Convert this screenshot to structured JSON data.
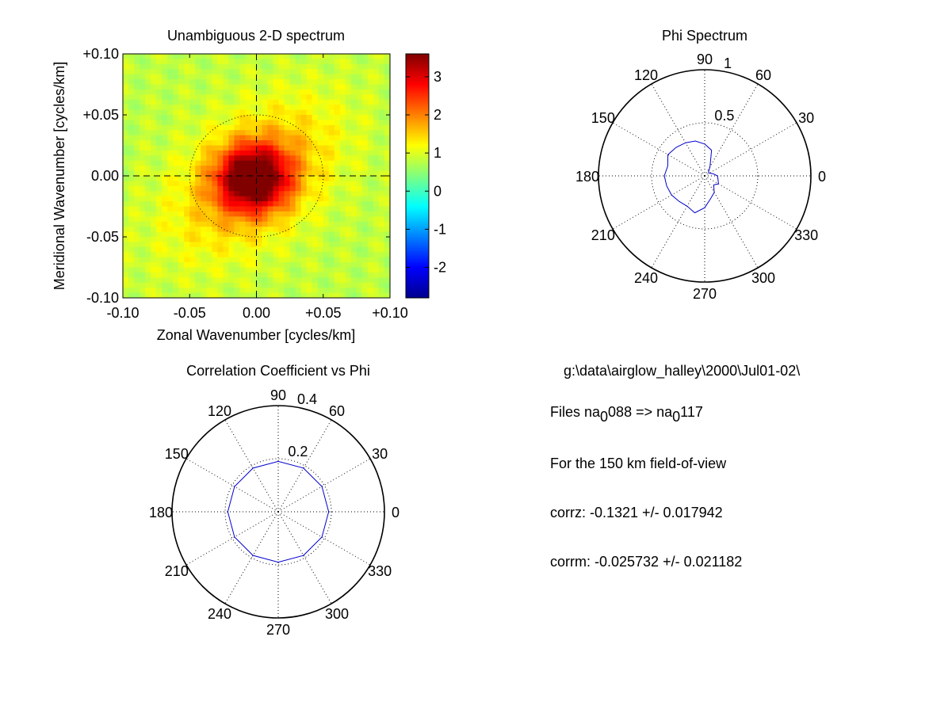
{
  "chart_data": [
    {
      "type": "heatmap",
      "title": "Unambiguous 2-D spectrum",
      "xlabel": "Zonal Wavenumber [cycles/km]",
      "ylabel": "Meridional Wavenumber [cycles/km]",
      "xlim": [
        -0.1,
        0.1
      ],
      "ylim": [
        -0.1,
        0.1
      ],
      "xticks": [
        "-0.10",
        "-0.05",
        "0.00",
        "+0.05",
        "+0.10"
      ],
      "yticks": [
        "+0.10",
        "+0.05",
        "0.00",
        "-0.05",
        "-0.10"
      ],
      "crosshair_at": [
        0,
        0
      ],
      "reference_circle_radius": 0.05,
      "colormap": "jet",
      "clim": [
        -2.8,
        3.6
      ],
      "colorbar_ticks": [
        "3",
        "2",
        "1",
        "0",
        "-1",
        "-2"
      ],
      "peak": {
        "x": -0.002,
        "y": -0.002,
        "value": 3.5
      },
      "background_level": 0.8
    },
    {
      "type": "polar-line",
      "title": "Phi Spectrum",
      "rlim": [
        0,
        1
      ],
      "r_ticks": [
        "0.5",
        "1"
      ],
      "angle_labels": [
        "0",
        "30",
        "60",
        "90",
        "120",
        "150",
        "180",
        "210",
        "240",
        "270",
        "300",
        "330"
      ],
      "series": [
        {
          "color": "#0000cc",
          "theta_deg": [
            0,
            15,
            30,
            45,
            60,
            75,
            90,
            105,
            120,
            135,
            150,
            165,
            180,
            195,
            210,
            225,
            240,
            255,
            270,
            285,
            300,
            315,
            330,
            345
          ],
          "r": [
            0.12,
            0.08,
            0.05,
            0.05,
            0.1,
            0.25,
            0.3,
            0.34,
            0.36,
            0.38,
            0.4,
            0.36,
            0.38,
            0.37,
            0.36,
            0.34,
            0.33,
            0.36,
            0.3,
            0.22,
            0.18,
            0.12,
            0.15,
            0.13
          ]
        }
      ]
    },
    {
      "type": "polar-line",
      "title": "Correlation Coefficient vs Phi",
      "rlim": [
        0,
        0.4
      ],
      "r_ticks": [
        "0.2",
        "0.4"
      ],
      "angle_labels": [
        "0",
        "30",
        "60",
        "90",
        "120",
        "150",
        "180",
        "210",
        "240",
        "270",
        "300",
        "330"
      ],
      "series": [
        {
          "color": "#0000cc",
          "theta_deg": [
            0,
            30,
            60,
            90,
            120,
            150,
            180,
            210,
            240,
            270,
            300,
            330
          ],
          "r": [
            0.19,
            0.19,
            0.19,
            0.19,
            0.19,
            0.19,
            0.19,
            0.19,
            0.19,
            0.19,
            0.19,
            0.19
          ]
        }
      ]
    }
  ],
  "info": {
    "path": "g:\\data\\airglow_halley\\2000\\Jul01-02\\",
    "files_label": "Files  na",
    "files_sub1": "0",
    "files_start_num": "088  =>  na",
    "files_sub2": "0",
    "files_end_num": "117",
    "fov_line": "For the  150 km field-of-view",
    "corrz_line": "corrz: -0.1321 +/- 0.017942",
    "corrm_line": "corrm: -0.025732 +/- 0.021182"
  }
}
